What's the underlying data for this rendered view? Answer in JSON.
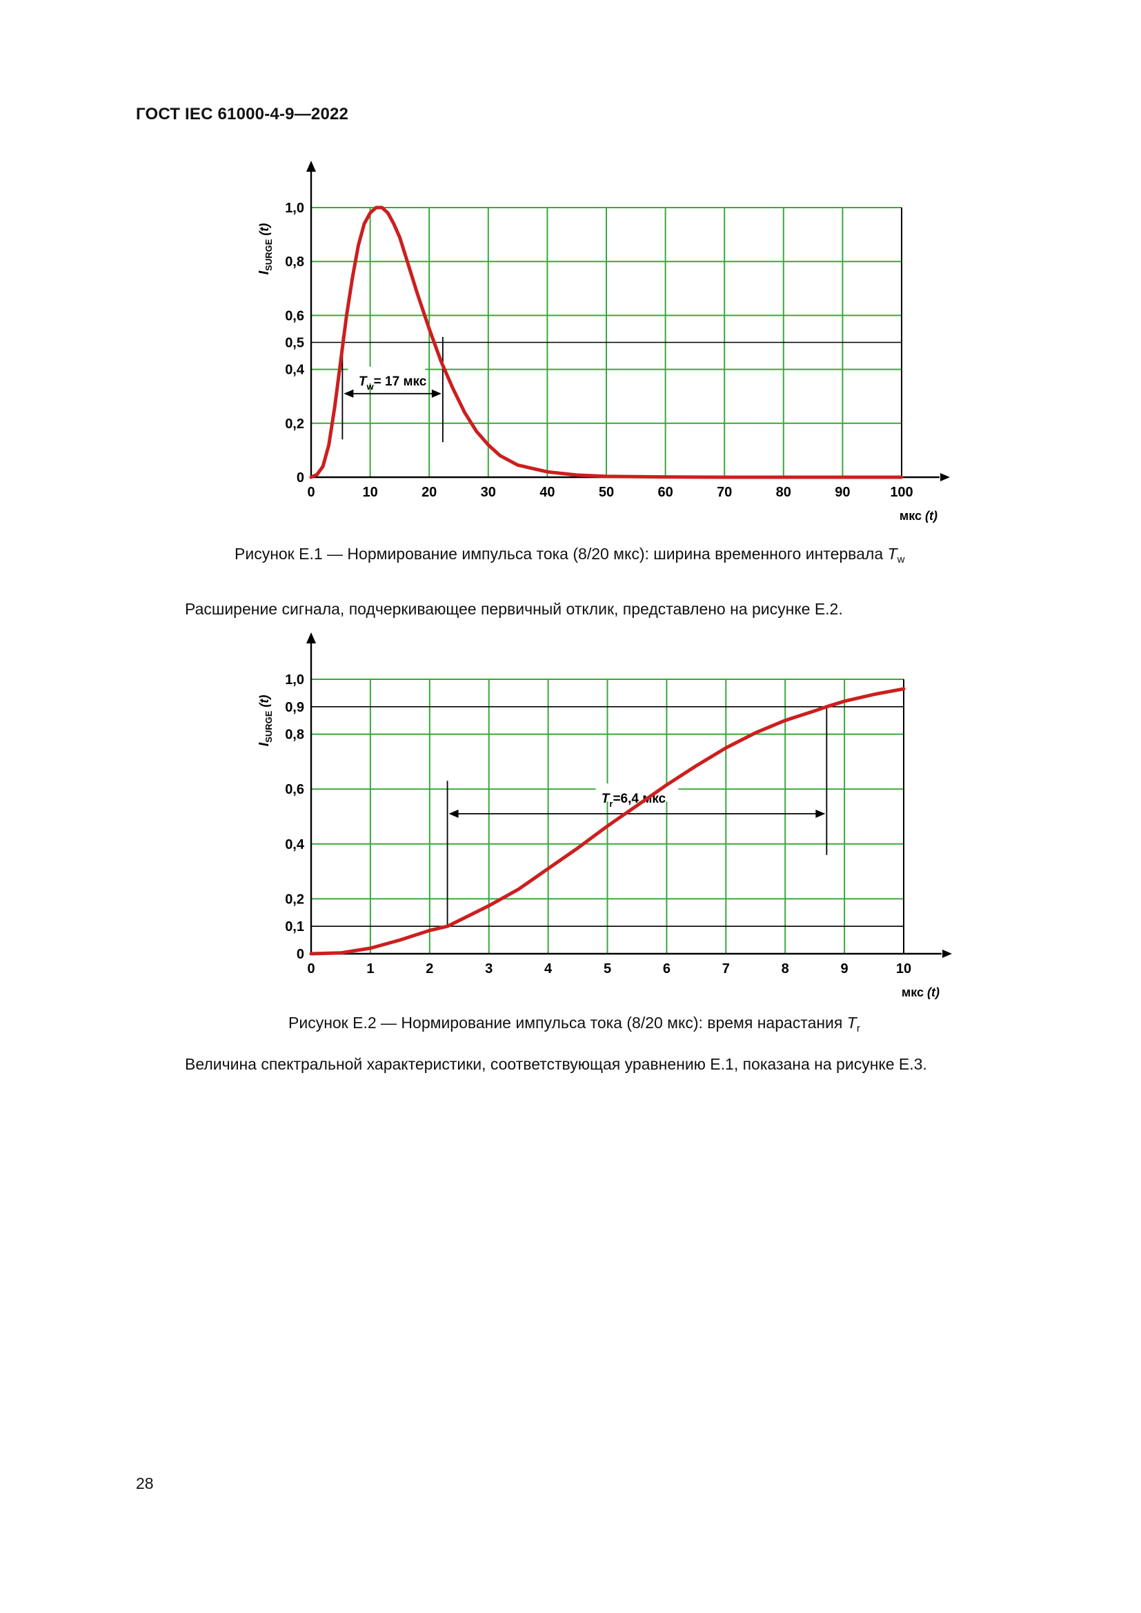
{
  "header": {
    "doc_id": "ГОСТ IEC 61000-4-9—2022"
  },
  "figures": [
    {
      "caption_prefix": "Рисунок Е.1 — Нормирование импульса тока (8/20 мкс): ширина временного интервала ",
      "caption_symbol": "T",
      "caption_subscript": "w",
      "annotation": {
        "symbol": "T",
        "subscript": "w",
        "text": "= 17 мкс"
      }
    },
    {
      "caption_prefix": "Рисунок Е.2 — Нормирование импульса тока (8/20 мкс): время нарастания ",
      "caption_symbol": "T",
      "caption_subscript": "r",
      "annotation": {
        "symbol": "T",
        "subscript": "r",
        "text": "=6,4 мкс"
      }
    }
  ],
  "paragraphs": [
    "Расширение сигнала, подчеркивающее первичный отклик, представлено на рисунке Е.2.",
    "Величина спектральной характеристики, соответствующая уравнению Е.1, показана на рисунке Е.3."
  ],
  "page_number": "28",
  "chart_data": [
    {
      "type": "line",
      "title": "",
      "ylabel_symbol": "I",
      "ylabel_subscript": "SURGE",
      "ylabel_suffix": " (t)",
      "xlabel_prefix": "мкс ",
      "xlabel_var": "(t)",
      "xlim": [
        0,
        100
      ],
      "ylim": [
        0,
        1.0
      ],
      "x_ticks": [
        0,
        10,
        20,
        30,
        40,
        50,
        60,
        70,
        80,
        90,
        100
      ],
      "x_tick_labels": [
        "0",
        "10",
        "20",
        "30",
        "40",
        "50",
        "60",
        "70",
        "80",
        "90",
        "100"
      ],
      "y_ticks": [
        0,
        0.2,
        0.4,
        0.5,
        0.6,
        0.8,
        1.0
      ],
      "y_tick_labels": [
        "0",
        "0,2",
        "0,4",
        "0,5",
        "0,6",
        "0,8",
        "1,0"
      ],
      "y_tick_black": [
        0.5
      ],
      "grid": true,
      "grid_color": "#3aa83a",
      "line_color": "#cc1f1f",
      "series": [
        {
          "x": [
            0,
            1,
            2,
            3,
            4,
            5,
            6,
            7,
            8,
            9,
            10,
            11,
            12,
            13,
            14,
            15,
            16,
            18,
            20,
            22,
            24,
            26,
            28,
            30,
            32,
            35,
            40,
            45,
            50,
            60,
            70,
            80,
            90,
            100
          ],
          "y": [
            0,
            0.01,
            0.04,
            0.12,
            0.26,
            0.43,
            0.6,
            0.74,
            0.86,
            0.94,
            0.98,
            1.0,
            1.0,
            0.98,
            0.94,
            0.89,
            0.82,
            0.68,
            0.55,
            0.43,
            0.33,
            0.24,
            0.17,
            0.12,
            0.08,
            0.045,
            0.02,
            0.008,
            0.003,
            0.001,
            0,
            0,
            0,
            0
          ]
        }
      ],
      "markers": {
        "x1": 5.3,
        "x2": 22.3,
        "level": 0.5,
        "arrow_y": 0.31
      }
    },
    {
      "type": "line",
      "title": "",
      "ylabel_symbol": "I",
      "ylabel_subscript": "SURGE",
      "ylabel_suffix": " (t)",
      "xlabel_prefix": "мкс ",
      "xlabel_var": "(t)",
      "xlim": [
        0,
        10
      ],
      "ylim": [
        0,
        1.0
      ],
      "x_ticks": [
        0,
        1,
        2,
        3,
        4,
        5,
        6,
        7,
        8,
        9,
        10
      ],
      "x_tick_labels": [
        "0",
        "1",
        "2",
        "3",
        "4",
        "5",
        "6",
        "7",
        "8",
        "9",
        "10"
      ],
      "y_ticks": [
        0,
        0.1,
        0.2,
        0.4,
        0.6,
        0.8,
        0.9,
        1.0
      ],
      "y_tick_labels": [
        "0",
        "0,1",
        "0,2",
        "0,4",
        "0,6",
        "0,8",
        "0,9",
        "1,0"
      ],
      "y_tick_black": [
        0.1,
        0.9
      ],
      "grid": true,
      "grid_color": "#3aa83a",
      "line_color": "#cc1f1f",
      "series": [
        {
          "x": [
            0,
            0.5,
            1,
            1.5,
            2,
            2.3,
            3,
            3.5,
            4,
            4.5,
            5,
            5.5,
            6,
            6.5,
            7,
            7.5,
            8,
            8.5,
            8.7,
            9,
            9.5,
            10
          ],
          "y": [
            0,
            0.003,
            0.02,
            0.05,
            0.085,
            0.1,
            0.175,
            0.235,
            0.31,
            0.385,
            0.465,
            0.54,
            0.615,
            0.685,
            0.75,
            0.805,
            0.85,
            0.885,
            0.9,
            0.92,
            0.945,
            0.965
          ]
        }
      ],
      "markers": {
        "x1": 2.3,
        "x2": 8.7,
        "low": 0.1,
        "high": 0.9,
        "arrow_y": 0.51
      }
    }
  ]
}
